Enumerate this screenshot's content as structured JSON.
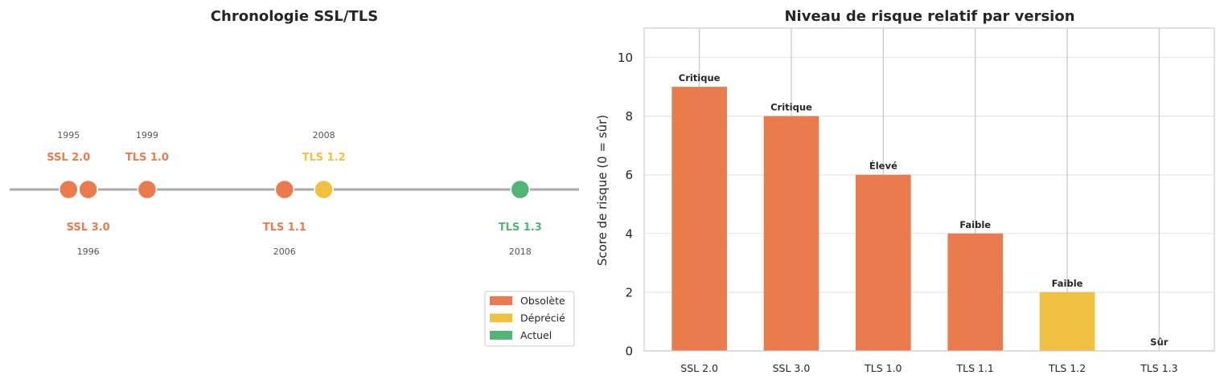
{
  "colors": {
    "obsolete": "#E97B4E",
    "deprecated": "#F0C040",
    "current": "#52B577",
    "axis_line": "#AAAAAA",
    "grid": "#E6E6E6",
    "vgrid": "#CCCCCC"
  },
  "chart_data": [
    {
      "type": "scatter",
      "title": "Chronologie SSL/TLS",
      "xlim": [
        1992,
        2021
      ],
      "points": [
        {
          "label": "SSL 2.0",
          "year": "1995",
          "x": 1995,
          "status": "obsolete",
          "label_side": "top"
        },
        {
          "label": "SSL 3.0",
          "year": "1996",
          "x": 1996,
          "status": "obsolete",
          "label_side": "bottom"
        },
        {
          "label": "TLS 1.0",
          "year": "1999",
          "x": 1999,
          "status": "obsolete",
          "label_side": "top"
        },
        {
          "label": "TLS 1.1",
          "year": "2006",
          "x": 2006,
          "status": "obsolete",
          "label_side": "bottom"
        },
        {
          "label": "TLS 1.2",
          "year": "2008",
          "x": 2008,
          "status": "deprecated",
          "label_side": "top"
        },
        {
          "label": "TLS 1.3",
          "year": "2018",
          "x": 2018,
          "status": "current",
          "label_side": "bottom"
        }
      ],
      "legend": {
        "position": "lower-right",
        "entries": [
          {
            "label": "Obsolète",
            "status": "obsolete"
          },
          {
            "label": "Déprécié",
            "status": "deprecated"
          },
          {
            "label": "Actuel",
            "status": "current"
          }
        ]
      }
    },
    {
      "type": "bar",
      "title": "Niveau de risque relatif par version",
      "ylabel": "Score de risque (0 = sûr)",
      "xlabel": "",
      "ylim": [
        0,
        11
      ],
      "yticks": [
        0,
        2,
        4,
        6,
        8,
        10
      ],
      "grid": true,
      "categories": [
        "SSL 2.0",
        "SSL 3.0",
        "TLS 1.0",
        "TLS 1.1",
        "TLS 1.2",
        "TLS 1.3"
      ],
      "values": [
        9,
        8,
        6,
        4,
        2,
        0
      ],
      "statuses": [
        "obsolete",
        "obsolete",
        "obsolete",
        "obsolete",
        "deprecated",
        "current"
      ],
      "bar_labels": [
        "Critique",
        "Critique",
        "Élevé",
        "Faible",
        "Faible",
        "Sûr"
      ]
    }
  ]
}
